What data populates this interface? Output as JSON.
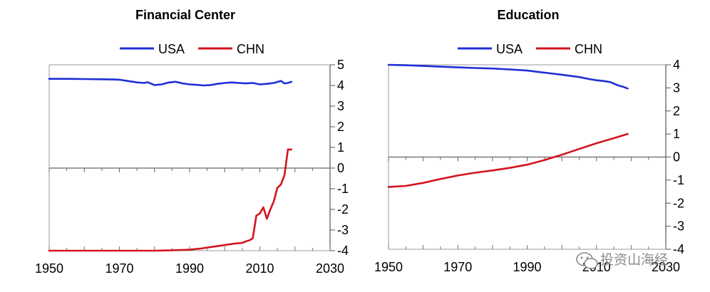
{
  "watermark": "投资山海经",
  "chart_data": [
    {
      "type": "line",
      "title": "Financial Center",
      "xlabel": "",
      "ylabel": "",
      "xlim": [
        1950,
        2030
      ],
      "ylim": [
        -4,
        5
      ],
      "x_ticks": [
        1950,
        1970,
        1990,
        2010,
        2030
      ],
      "y_ticks": [
        5,
        4,
        3,
        2,
        1,
        0,
        -1,
        -2,
        -3,
        -4
      ],
      "y_axis_side": "right",
      "legend_position": "top-center",
      "series": [
        {
          "name": "USA",
          "color": "#1f2fd6",
          "x": [
            1950,
            1955,
            1960,
            1965,
            1968,
            1970,
            1973,
            1975,
            1977,
            1978,
            1980,
            1982,
            1984,
            1986,
            1988,
            1990,
            1992,
            1994,
            1996,
            1998,
            2000,
            2002,
            2004,
            2006,
            2008,
            2010,
            2012,
            2014,
            2016,
            2017,
            2018,
            2019
          ],
          "y": [
            4.32,
            4.32,
            4.31,
            4.3,
            4.29,
            4.28,
            4.2,
            4.15,
            4.12,
            4.16,
            4.02,
            4.05,
            4.14,
            4.18,
            4.1,
            4.05,
            4.03,
            4.0,
            4.02,
            4.08,
            4.12,
            4.15,
            4.12,
            4.1,
            4.12,
            4.05,
            4.08,
            4.12,
            4.22,
            4.1,
            4.12,
            4.18
          ]
        },
        {
          "name": "CHN",
          "color": "#d3141e",
          "x": [
            1950,
            1970,
            1980,
            1985,
            1990,
            1993,
            1995,
            1997,
            1999,
            2001,
            2003,
            2005,
            2006,
            2007,
            2008,
            2009,
            2010,
            2011,
            2012,
            2013,
            2014,
            2015,
            2016,
            2017,
            2018,
            2019
          ],
          "y": [
            -4.0,
            -4.0,
            -4.0,
            -3.98,
            -3.95,
            -3.9,
            -3.85,
            -3.8,
            -3.75,
            -3.7,
            -3.65,
            -3.62,
            -3.55,
            -3.5,
            -3.4,
            -2.3,
            -2.2,
            -1.9,
            -2.45,
            -2.0,
            -1.6,
            -0.95,
            -0.8,
            -0.35,
            0.9,
            0.9
          ]
        }
      ]
    },
    {
      "type": "line",
      "title": "Education",
      "xlabel": "",
      "ylabel": "",
      "xlim": [
        1950,
        2030
      ],
      "ylim": [
        -4,
        4
      ],
      "x_ticks": [
        1950,
        1970,
        1990,
        2010,
        2030
      ],
      "y_ticks": [
        4,
        3,
        2,
        1,
        0,
        -1,
        -2,
        -3,
        -4
      ],
      "y_axis_side": "right",
      "legend_position": "top-center",
      "series": [
        {
          "name": "USA",
          "color": "#1f2fd6",
          "x": [
            1950,
            1955,
            1960,
            1965,
            1970,
            1975,
            1980,
            1985,
            1990,
            1995,
            2000,
            2005,
            2008,
            2010,
            2012,
            2014,
            2016,
            2018,
            2019
          ],
          "y": [
            4.0,
            3.98,
            3.95,
            3.92,
            3.89,
            3.86,
            3.84,
            3.8,
            3.75,
            3.66,
            3.57,
            3.47,
            3.38,
            3.33,
            3.3,
            3.25,
            3.12,
            3.03,
            2.97
          ]
        },
        {
          "name": "CHN",
          "color": "#d3141e",
          "x": [
            1950,
            1955,
            1960,
            1965,
            1970,
            1975,
            1980,
            1985,
            1990,
            1995,
            2000,
            2005,
            2010,
            2015,
            2019
          ],
          "y": [
            -1.3,
            -1.25,
            -1.12,
            -0.95,
            -0.8,
            -0.68,
            -0.58,
            -0.47,
            -0.33,
            -0.13,
            0.1,
            0.35,
            0.6,
            0.82,
            1.0
          ]
        }
      ]
    }
  ]
}
